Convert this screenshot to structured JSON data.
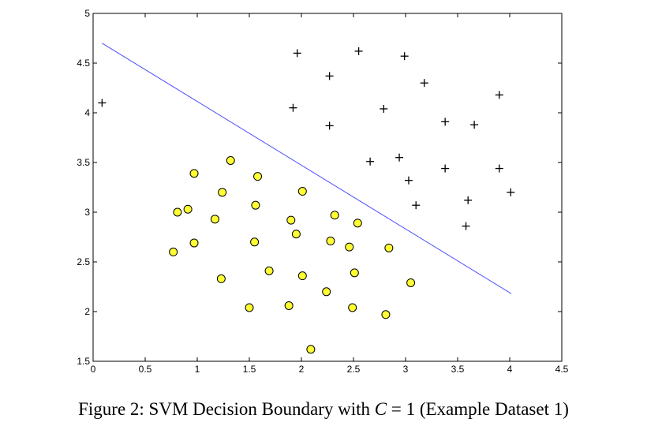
{
  "chart_data": {
    "type": "scatter",
    "xlim": [
      0,
      4.5
    ],
    "ylim": [
      1.5,
      5
    ],
    "x_ticks": [
      "0",
      "0.5",
      "1",
      "1.5",
      "2",
      "2.5",
      "3",
      "3.5",
      "4",
      "4.5"
    ],
    "y_ticks": [
      "1.5",
      "2",
      "2.5",
      "3",
      "3.5",
      "4",
      "4.5",
      "5"
    ],
    "grid": false,
    "series": [
      {
        "marker": "plus",
        "color": "#000000",
        "points": [
          [
            0.086,
            4.1
          ],
          [
            1.96,
            4.6
          ],
          [
            2.55,
            4.62
          ],
          [
            2.99,
            4.57
          ],
          [
            2.27,
            4.37
          ],
          [
            3.18,
            4.3
          ],
          [
            1.92,
            4.05
          ],
          [
            2.79,
            4.04
          ],
          [
            3.9,
            4.18
          ],
          [
            2.27,
            3.87
          ],
          [
            3.38,
            3.91
          ],
          [
            3.66,
            3.88
          ],
          [
            2.66,
            3.51
          ],
          [
            2.94,
            3.55
          ],
          [
            3.38,
            3.44
          ],
          [
            3.9,
            3.44
          ],
          [
            3.03,
            3.32
          ],
          [
            4.01,
            3.2
          ],
          [
            3.1,
            3.07
          ],
          [
            3.6,
            3.12
          ],
          [
            3.58,
            2.86
          ]
        ]
      },
      {
        "marker": "circle",
        "color": "#ffff33",
        "points": [
          [
            0.97,
            3.39
          ],
          [
            1.32,
            3.52
          ],
          [
            1.58,
            3.36
          ],
          [
            1.24,
            3.2
          ],
          [
            2.01,
            3.21
          ],
          [
            0.81,
            3.0
          ],
          [
            0.91,
            3.03
          ],
          [
            1.17,
            2.93
          ],
          [
            1.56,
            3.07
          ],
          [
            1.9,
            2.92
          ],
          [
            2.32,
            2.97
          ],
          [
            2.54,
            2.89
          ],
          [
            1.95,
            2.78
          ],
          [
            0.77,
            2.6
          ],
          [
            0.97,
            2.69
          ],
          [
            1.55,
            2.7
          ],
          [
            2.28,
            2.71
          ],
          [
            2.46,
            2.65
          ],
          [
            2.84,
            2.64
          ],
          [
            1.69,
            2.41
          ],
          [
            2.01,
            2.36
          ],
          [
            2.51,
            2.39
          ],
          [
            1.23,
            2.33
          ],
          [
            3.05,
            2.29
          ],
          [
            2.24,
            2.2
          ],
          [
            1.5,
            2.04
          ],
          [
            1.88,
            2.06
          ],
          [
            2.49,
            2.04
          ],
          [
            2.81,
            1.97
          ],
          [
            2.09,
            1.62
          ]
        ]
      }
    ],
    "boundary": {
      "color": "#4a4aff",
      "x": [
        0.086,
        4.015
      ],
      "y": [
        4.7,
        2.18
      ]
    }
  },
  "caption": {
    "prefix": "Figure 2: SVM Decision Boundary with ",
    "math": "C",
    "middle": " = 1",
    "suffix": " (Example Dataset 1)"
  }
}
